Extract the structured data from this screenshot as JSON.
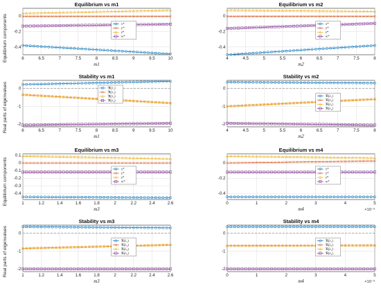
{
  "figure_labels": {
    "ylabel_equilibrium": "Equilibrium components",
    "ylabel_stability": "Real parts of eigenvalues"
  },
  "legends": {
    "equilibrium": [
      "x*",
      "y*",
      "z*",
      "w*"
    ],
    "stability": [
      "ℜ(λ₁)",
      "ℜ(λ₂)",
      "ℜ(λ₃)",
      "ℜ(λ₄)"
    ]
  },
  "series_colors": [
    "#0072BD",
    "#D95319",
    "#EDB120",
    "#7E2F8E"
  ],
  "zero_line_color": "#808080",
  "chart_data": [
    {
      "type": "line",
      "title": "Equilibrium vs m1",
      "xlabel": "m1",
      "ylabel": "Equilibrium components",
      "xlim": [
        6,
        10
      ],
      "ylim": [
        -0.5,
        0.1
      ],
      "xticks": [
        "6",
        "6.5",
        "7",
        "7.5",
        "8",
        "8.5",
        "9",
        "9.5",
        "10"
      ],
      "yticks": [
        "-0.4",
        "-0.2",
        "0"
      ],
      "x": [
        6,
        10
      ],
      "series": [
        {
          "name": "x*",
          "values": [
            -0.38,
            -0.49
          ]
        },
        {
          "name": "y*",
          "values": [
            -0.005,
            -0.005
          ]
        },
        {
          "name": "z*",
          "values": [
            0.035,
            0.075
          ]
        },
        {
          "name": "w*",
          "values": [
            -0.13,
            -0.105
          ]
        }
      ],
      "grid": true,
      "legend": "center-right"
    },
    {
      "type": "line",
      "title": "Equilibrium vs m2",
      "xlabel": "m2",
      "ylabel": "",
      "xlim": [
        4,
        8
      ],
      "ylim": [
        -0.5,
        0.1
      ],
      "xticks": [
        "4",
        "4.5",
        "5",
        "5.5",
        "6",
        "6.5",
        "7",
        "7.5",
        "8"
      ],
      "yticks": [
        "-0.4",
        "-0.2",
        "0"
      ],
      "x": [
        4,
        8
      ],
      "series": [
        {
          "name": "x*",
          "values": [
            -0.5,
            -0.38
          ]
        },
        {
          "name": "y*",
          "values": [
            -0.005,
            -0.005
          ]
        },
        {
          "name": "z*",
          "values": [
            0.075,
            0.06
          ]
        },
        {
          "name": "w*",
          "values": [
            -0.16,
            -0.095
          ]
        }
      ],
      "grid": true,
      "legend": "center-right"
    },
    {
      "type": "line",
      "title": "Stability vs m1",
      "xlabel": "m1",
      "ylabel": "Real parts of eigenvalues",
      "xlim": [
        6,
        10
      ],
      "ylim": [
        -2.15,
        0.45
      ],
      "xticks": [
        "6",
        "6.5",
        "7",
        "7.5",
        "8",
        "8.5",
        "9",
        "9.5",
        "10"
      ],
      "yticks": [
        "-2",
        "-1",
        "0"
      ],
      "x": [
        6,
        10
      ],
      "series": [
        {
          "name": "ℜ(λ₁)",
          "values": [
            0.22,
            0.4
          ]
        },
        {
          "name": "ℜ(λ₂)",
          "values": [
            -0.35,
            -0.82
          ]
        },
        {
          "name": "ℜ(λ₃)",
          "values": [
            -0.35,
            -0.82
          ]
        },
        {
          "name": "ℜ(λ₄)",
          "values": [
            -2.05,
            -1.95
          ]
        }
      ],
      "grid": true,
      "legend": "top-center"
    },
    {
      "type": "line",
      "title": "Stability vs m2",
      "xlabel": "m2",
      "ylabel": "",
      "xlim": [
        4,
        8
      ],
      "ylim": [
        -2.15,
        0.45
      ],
      "xticks": [
        "4",
        "4.5",
        "5",
        "5.5",
        "6",
        "6.5",
        "7",
        "7.5",
        "8"
      ],
      "yticks": [
        "-2",
        "-1",
        "0"
      ],
      "x": [
        4,
        8
      ],
      "series": [
        {
          "name": "ℜ(λ₁)",
          "values": [
            0.35,
            0.3
          ]
        },
        {
          "name": "ℜ(λ₂)",
          "values": [
            -1.0,
            -0.6
          ]
        },
        {
          "name": "ℜ(λ₃)",
          "values": [
            -1.0,
            -0.6
          ]
        },
        {
          "name": "ℜ(λ₄)",
          "values": [
            -1.95,
            -2.05
          ]
        }
      ],
      "grid": true,
      "legend": "center-right"
    },
    {
      "type": "line",
      "title": "Equilibrium vs m3",
      "xlabel": "m3",
      "ylabel": "Equilibrium components",
      "xlim": [
        1,
        2.6
      ],
      "ylim": [
        -0.48,
        0.12
      ],
      "xticks": [
        "1",
        "1.2",
        "1.4",
        "1.6",
        "1.8",
        "2",
        "2.2",
        "2.4",
        "2.6"
      ],
      "yticks": [
        "-0.4",
        "-0.3",
        "-0.2",
        "-0.1",
        "0",
        "0.1"
      ],
      "x": [
        1,
        2.6
      ],
      "series": [
        {
          "name": "x*",
          "values": [
            -0.445,
            -0.455
          ]
        },
        {
          "name": "y*",
          "values": [
            0.0,
            0.0
          ]
        },
        {
          "name": "z*",
          "values": [
            0.09,
            0.055
          ]
        },
        {
          "name": "w*",
          "values": [
            -0.12,
            -0.12
          ]
        }
      ],
      "grid": true,
      "legend": "center-right"
    },
    {
      "type": "line",
      "title": "Equilibrium vs m4",
      "xlabel": "m4",
      "ylabel": "",
      "xlim": [
        0,
        5
      ],
      "ylim": [
        -0.48,
        0.12
      ],
      "xticks": [
        "0",
        "1",
        "2",
        "3",
        "4",
        "5"
      ],
      "yticks": [
        "-0.4",
        "-0.2",
        "0"
      ],
      "x_exponent": "×10⁻³",
      "x": [
        0,
        5
      ],
      "series": [
        {
          "name": "x*",
          "values": [
            -0.445,
            -0.445
          ]
        },
        {
          "name": "y*",
          "values": [
            0.0,
            0.025
          ]
        },
        {
          "name": "z*",
          "values": [
            0.09,
            0.065
          ]
        },
        {
          "name": "w*",
          "values": [
            -0.12,
            -0.12
          ]
        }
      ],
      "grid": true,
      "legend": "center-right"
    },
    {
      "type": "line",
      "title": "Stability vs m3",
      "xlabel": "m3",
      "ylabel": "Real parts of eigenvalues",
      "xlim": [
        1,
        2.6
      ],
      "ylim": [
        -2.15,
        0.45
      ],
      "xticks": [
        "1",
        "1.2",
        "1.4",
        "1.6",
        "1.8",
        "2",
        "2.2",
        "2.4",
        "2.6"
      ],
      "yticks": [
        "-2",
        "-1",
        "0"
      ],
      "x": [
        1,
        2.6
      ],
      "series": [
        {
          "name": "ℜ(λ₁)",
          "values": [
            0.36,
            0.3
          ]
        },
        {
          "name": "ℜ(λ₂)",
          "values": [
            -0.85,
            -0.65
          ]
        },
        {
          "name": "ℜ(λ₃)",
          "values": [
            -0.85,
            -0.65
          ]
        },
        {
          "name": "ℜ(λ₄)",
          "values": [
            -2.0,
            -2.0
          ]
        }
      ],
      "grid": true,
      "legend": "center-right"
    },
    {
      "type": "line",
      "title": "Stability vs m4",
      "xlabel": "m4",
      "ylabel": "",
      "xlim": [
        0,
        5
      ],
      "ylim": [
        -2.15,
        0.45
      ],
      "xticks": [
        "0",
        "1",
        "2",
        "3",
        "4",
        "5"
      ],
      "yticks": [
        "-2",
        "-1",
        "0"
      ],
      "x_exponent": "×10⁻³",
      "x": [
        0,
        5
      ],
      "series": [
        {
          "name": "ℜ(λ₁)",
          "values": [
            0.36,
            0.36
          ]
        },
        {
          "name": "ℜ(λ₂)",
          "values": [
            -0.7,
            -0.68
          ]
        },
        {
          "name": "ℜ(λ₃)",
          "values": [
            -0.7,
            -0.68
          ]
        },
        {
          "name": "ℜ(λ₄)",
          "values": [
            -2.0,
            -2.0
          ]
        }
      ],
      "grid": true,
      "legend": "center-right"
    }
  ]
}
